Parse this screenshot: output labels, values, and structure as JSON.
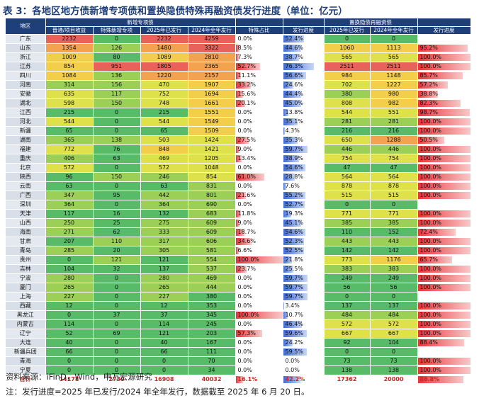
{
  "title": "表 3：各地区地方债新增专项债和置换隐债特殊再融资债发行进度（单位：亿元）",
  "headers": {
    "region": "地区",
    "new_group": "新增专项债",
    "refi_group": "置换隐债再融资债",
    "invest": "普通/项目收益",
    "special": "特殊新增专项",
    "y2025": "2025年已发行",
    "y2024": "2024年全年发行",
    "share": "特殊占比",
    "progress": "发行进度",
    "refi2025": "2025年已发行",
    "refi2024": "2024年全年发行",
    "refiprog": "发行进度"
  },
  "rows": [
    {
      "region": "广东",
      "invest": "2232",
      "special": "0",
      "y2025": "2232",
      "y2024": "4259",
      "share": "0.0%",
      "progress": "52.4%",
      "refi2025": "0",
      "refi2024": "0",
      "refiprog": ""
    },
    {
      "region": "山东",
      "invest": "1354",
      "special": "126",
      "y2025": "1480",
      "y2024": "3322",
      "share": "8.5%",
      "progress": "44.6%",
      "refi2025": "1060",
      "refi2024": "1113",
      "refiprog": "95.2%"
    },
    {
      "region": "浙江",
      "invest": "1009",
      "special": "80",
      "y2025": "1089",
      "y2024": "2810",
      "share": "7.3%",
      "progress": "38.7%",
      "refi2025": "565",
      "refi2024": "565",
      "refiprog": "100.0%"
    },
    {
      "region": "江苏",
      "invest": "854",
      "special": "951",
      "y2025": "1805",
      "y2024": "2365",
      "share": "52.7%",
      "progress": "76.3%",
      "refi2025": "2511",
      "refi2024": "2511",
      "refiprog": "100.0%"
    },
    {
      "region": "四川",
      "invest": "1084",
      "special": "136",
      "y2025": "1220",
      "y2024": "2157",
      "share": "11.1%",
      "progress": "56.6%",
      "refi2025": "984",
      "refi2024": "1148",
      "refiprog": "85.7%"
    },
    {
      "region": "河南",
      "invest": "314",
      "special": "156",
      "y2025": "470",
      "y2024": "1907",
      "share": "33.2%",
      "progress": "24.6%",
      "refi2025": "702",
      "refi2024": "1227",
      "refiprog": "57.2%"
    },
    {
      "region": "安徽",
      "invest": "635",
      "special": "117",
      "y2025": "752",
      "y2024": "1694",
      "share": "15.6%",
      "progress": "44.4%",
      "refi2025": "380",
      "refi2024": "980",
      "refiprog": "38.8%"
    },
    {
      "region": "湖北",
      "invest": "598",
      "special": "150",
      "y2025": "748",
      "y2024": "1661",
      "share": "20.1%",
      "progress": "45.0%",
      "refi2025": "808",
      "refi2024": "982",
      "refiprog": "82.3%"
    },
    {
      "region": "江西",
      "invest": "215",
      "special": "0",
      "y2025": "215",
      "y2024": "1551",
      "share": "0.0%",
      "progress": "13.8%",
      "refi2025": "544",
      "refi2024": "551",
      "refiprog": "98.7%"
    },
    {
      "region": "河北",
      "invest": "544",
      "special": "0",
      "y2025": "544",
      "y2024": "1549",
      "share": "0.0%",
      "progress": "35.1%",
      "refi2025": "281",
      "refi2024": "281",
      "refiprog": "100.0%"
    },
    {
      "region": "新疆",
      "invest": "65",
      "special": "0",
      "y2025": "65",
      "y2024": "1509",
      "share": "0.0%",
      "progress": "4.3%",
      "refi2025": "216",
      "refi2024": "216",
      "refiprog": "100.0%"
    },
    {
      "region": "湖南",
      "invest": "365",
      "special": "138",
      "y2025": "503",
      "y2024": "1424",
      "share": "27.5%",
      "progress": "35.3%",
      "refi2025": "650",
      "refi2024": "1288",
      "refiprog": "50.5%"
    },
    {
      "region": "福建",
      "invest": "772",
      "special": "76",
      "y2025": "848",
      "y2024": "1421",
      "share": "9.0%",
      "progress": "59.7%",
      "refi2025": "446",
      "refi2024": "446",
      "refiprog": "100.0%"
    },
    {
      "region": "重庆",
      "invest": "406",
      "special": "63",
      "y2025": "469",
      "y2024": "1205",
      "share": "13.4%",
      "progress": "38.9%",
      "refi2025": "754",
      "refi2024": "754",
      "refiprog": "100.0%"
    },
    {
      "region": "北京",
      "invest": "572",
      "special": "0",
      "y2025": "572",
      "y2024": "1048",
      "share": "0.0%",
      "progress": "54.6%",
      "refi2025": "47",
      "refi2024": "47",
      "refiprog": "100.0%"
    },
    {
      "region": "陕西",
      "invest": "96",
      "special": "150",
      "y2025": "246",
      "y2024": "854",
      "share": "61.0%",
      "progress": "28.8%",
      "refi2025": "564",
      "refi2024": "564",
      "refiprog": "100.0%"
    },
    {
      "region": "云南",
      "invest": "63",
      "special": "0",
      "y2025": "63",
      "y2024": "831",
      "share": "0.0%",
      "progress": "7.6%",
      "refi2025": "878",
      "refi2024": "878",
      "refiprog": "100.0%"
    },
    {
      "region": "广西",
      "invest": "347",
      "special": "95",
      "y2025": "442",
      "y2024": "801",
      "share": "21.6%",
      "progress": "55.2%",
      "refi2025": "515",
      "refi2024": "515",
      "refiprog": "100.0%"
    },
    {
      "region": "深圳",
      "invest": "364",
      "special": "0",
      "y2025": "364",
      "y2024": "690",
      "share": "0.0%",
      "progress": "52.7%",
      "refi2025": "0",
      "refi2024": "0",
      "refiprog": ""
    },
    {
      "region": "天津",
      "invest": "117",
      "special": "16",
      "y2025": "132",
      "y2024": "683",
      "share": "11.8%",
      "progress": "19.3%",
      "refi2025": "771",
      "refi2024": "771",
      "refiprog": "100.0%"
    },
    {
      "region": "山西",
      "invest": "250",
      "special": "25",
      "y2025": "275",
      "y2024": "609",
      "share": "9.0%",
      "progress": "45.1%",
      "refi2025": "385",
      "refi2024": "385",
      "refiprog": "100.0%"
    },
    {
      "region": "海南",
      "invest": "271",
      "special": "62",
      "y2025": "333",
      "y2024": "609",
      "share": "18.7%",
      "progress": "54.6%",
      "refi2025": "110",
      "refi2024": "152",
      "refiprog": "72.4%"
    },
    {
      "region": "甘肃",
      "invest": "207",
      "special": "110",
      "y2025": "317",
      "y2024": "606",
      "share": "34.6%",
      "progress": "52.3%",
      "refi2025": "443",
      "refi2024": "443",
      "refiprog": "100.0%"
    },
    {
      "region": "青岛",
      "invest": "285",
      "special": "20",
      "y2025": "305",
      "y2024": "581",
      "share": "6.6%",
      "progress": "52.5%",
      "refi2025": "142",
      "refi2024": "142",
      "refiprog": "100.0%"
    },
    {
      "region": "贵州",
      "invest": "0",
      "special": "121",
      "y2025": "121",
      "y2024": "554",
      "share": "100.0%",
      "progress": "21.8%",
      "refi2025": "773",
      "refi2024": "1176",
      "refiprog": "65.7%"
    },
    {
      "region": "吉林",
      "invest": "104",
      "special": "32",
      "y2025": "137",
      "y2024": "537",
      "share": "23.7%",
      "progress": "25.5%",
      "refi2025": "383",
      "refi2024": "383",
      "refiprog": "100.0%"
    },
    {
      "region": "宁波",
      "invest": "280",
      "special": "0",
      "y2025": "280",
      "y2024": "469",
      "share": "0.0%",
      "progress": "59.7%",
      "refi2025": "249",
      "refi2024": "249",
      "refiprog": "100.0%"
    },
    {
      "region": "厦门",
      "invest": "265",
      "special": "0",
      "y2025": "265",
      "y2024": "444",
      "share": "0.0%",
      "progress": "59.7%",
      "refi2025": "56",
      "refi2024": "56",
      "refiprog": "100.0%"
    },
    {
      "region": "上海",
      "invest": "227",
      "special": "0",
      "y2025": "227",
      "y2024": "380",
      "share": "0.0%",
      "progress": "59.7%",
      "refi2025": "0",
      "refi2024": "0",
      "refiprog": ""
    },
    {
      "region": "西藏",
      "invest": "12",
      "special": "0",
      "y2025": "12",
      "y2024": "353",
      "share": "0.0%",
      "progress": "3.4%",
      "refi2025": "137",
      "refi2024": "137",
      "refiprog": "100.0%"
    },
    {
      "region": "黑龙江",
      "invest": "0",
      "special": "37",
      "y2025": "37",
      "y2024": "345",
      "share": "100.0%",
      "progress": "10.7%",
      "refi2025": "484",
      "refi2024": "484",
      "refiprog": "100.0%"
    },
    {
      "region": "内蒙古",
      "invest": "114",
      "special": "0",
      "y2025": "114",
      "y2024": "245",
      "share": "0.0%",
      "progress": "46.4%",
      "refi2025": "572",
      "refi2024": "572",
      "refiprog": "100.0%"
    },
    {
      "region": "辽宁",
      "invest": "52",
      "special": "69",
      "y2025": "121",
      "y2024": "203",
      "share": "57.3%",
      "progress": "59.6%",
      "refi2025": "667",
      "refi2024": "667",
      "refiprog": "100.0%"
    },
    {
      "region": "大连",
      "invest": "40",
      "special": "0",
      "y2025": "40",
      "y2024": "167",
      "share": "0.0%",
      "progress": "24.2%",
      "refi2025": "92",
      "refi2024": "104",
      "refiprog": "88.4%"
    },
    {
      "region": "新疆兵团",
      "invest": "66",
      "special": "0",
      "y2025": "66",
      "y2024": "111",
      "share": "0.0%",
      "progress": "59.5%",
      "refi2025": "0",
      "refi2024": "0",
      "refiprog": ""
    },
    {
      "region": "青海",
      "invest": "0",
      "special": "0",
      "y2025": "0",
      "y2024": "70",
      "share": "0.0%",
      "progress": "0.0%",
      "refi2025": "73",
      "refi2024": "73",
      "refiprog": "100.0%"
    },
    {
      "region": "宁夏",
      "invest": "0",
      "special": "0",
      "y2025": "0",
      "y2024": "34",
      "share": "0.0%",
      "progress": "0.0%",
      "refi2025": "138",
      "refi2024": "138",
      "refiprog": "100.0%"
    }
  ],
  "total": {
    "region": "合计",
    "invest": "14178",
    "special": "2730",
    "y2025": "16908",
    "y2024": "40032",
    "share": "16.1%",
    "progress": "42.2%",
    "refi2025": "17362",
    "refi2024": "20000",
    "refiprog": "86.8%"
  },
  "source": "资料来源：iFinD，Wind，申万宏源研究",
  "note": "注：发行进度=2025 年已发行/2024 年全年发行，数据截至 2025 年 6 月 20 日。"
}
